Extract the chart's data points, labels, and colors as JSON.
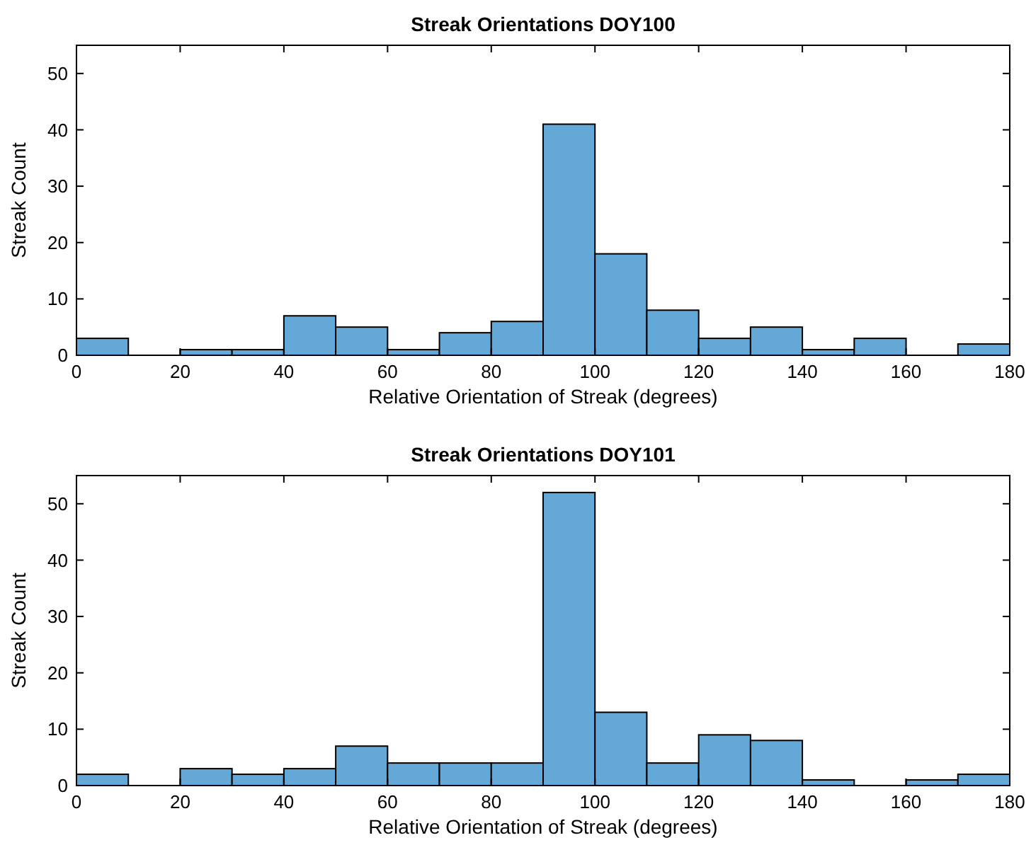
{
  "chart_data": [
    {
      "type": "histogram",
      "title": "Streak Orientations DOY100",
      "xlabel": "Relative Orientation of Streak (degrees)",
      "ylabel": "Streak Count",
      "color": "#63a8d7",
      "bins": [
        0,
        10,
        20,
        30,
        40,
        50,
        60,
        70,
        80,
        90,
        100,
        110,
        120,
        130,
        140,
        150,
        160,
        170,
        180
      ],
      "values": [
        3,
        0,
        1,
        1,
        7,
        5,
        1,
        4,
        6,
        41,
        18,
        8,
        3,
        5,
        1,
        3,
        0,
        2
      ],
      "xlim": [
        0,
        180
      ],
      "xticks": [
        0,
        20,
        40,
        60,
        80,
        100,
        120,
        140,
        160,
        180
      ],
      "ylim": [
        0,
        55
      ],
      "yticks": [
        0,
        10,
        20,
        30,
        40,
        50
      ]
    },
    {
      "type": "histogram",
      "title": "Streak Orientations DOY101",
      "xlabel": "Relative Orientation of Streak (degrees)",
      "ylabel": "Streak Count",
      "color": "#63a8d7",
      "bins": [
        0,
        10,
        20,
        30,
        40,
        50,
        60,
        70,
        80,
        90,
        100,
        110,
        120,
        130,
        140,
        150,
        160,
        170,
        180
      ],
      "values": [
        2,
        0,
        3,
        2,
        3,
        7,
        4,
        4,
        4,
        52,
        13,
        4,
        9,
        8,
        1,
        0,
        1,
        2
      ],
      "xlim": [
        0,
        180
      ],
      "xticks": [
        0,
        20,
        40,
        60,
        80,
        100,
        120,
        140,
        160,
        180
      ],
      "ylim": [
        0,
        55
      ],
      "yticks": [
        0,
        10,
        20,
        30,
        40,
        50
      ]
    }
  ]
}
